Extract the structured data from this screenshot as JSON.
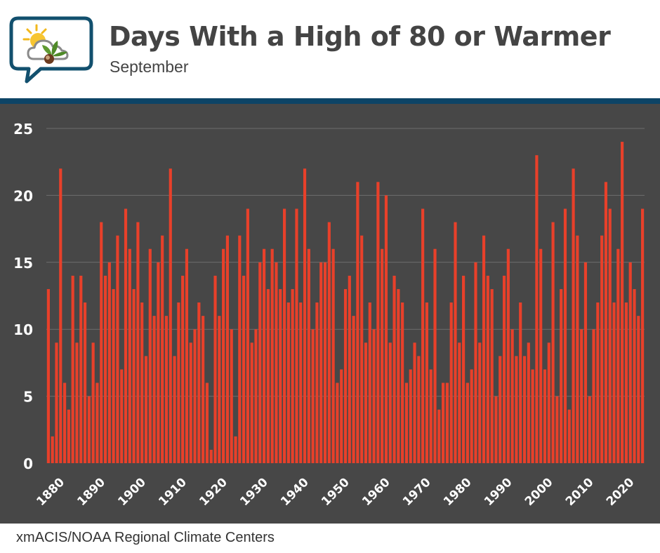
{
  "header": {
    "title": "Days With a High of 80 or Warmer",
    "subtitle": "September"
  },
  "footer": {
    "source": "xmACIS/NOAA Regional Climate Centers"
  },
  "colors": {
    "bar": "#e8402a",
    "panel": "#474747",
    "grid": "#6e6e6e",
    "accent_stripe": "#0d4466",
    "text": "#444444"
  },
  "chart_data": {
    "type": "bar",
    "title": "Days With a High of 80 or Warmer",
    "subtitle": "September",
    "xlabel": "",
    "ylabel": "",
    "x_start": 1878,
    "ylim": [
      0,
      25
    ],
    "yticks": [
      0,
      5,
      10,
      15,
      20,
      25
    ],
    "xtick_labels": [
      "1880",
      "1890",
      "1900",
      "1910",
      "1920",
      "1930",
      "1940",
      "1950",
      "1960",
      "1970",
      "1980",
      "1990",
      "2000",
      "2010",
      "2020"
    ],
    "grid": true,
    "x": [
      1878,
      1879,
      1880,
      1881,
      1882,
      1883,
      1884,
      1885,
      1886,
      1887,
      1888,
      1889,
      1890,
      1891,
      1892,
      1893,
      1894,
      1895,
      1896,
      1897,
      1898,
      1899,
      1900,
      1901,
      1902,
      1903,
      1904,
      1905,
      1906,
      1907,
      1908,
      1909,
      1910,
      1911,
      1912,
      1913,
      1914,
      1915,
      1916,
      1917,
      1918,
      1919,
      1920,
      1921,
      1922,
      1923,
      1924,
      1925,
      1926,
      1927,
      1928,
      1929,
      1930,
      1931,
      1932,
      1933,
      1934,
      1935,
      1936,
      1937,
      1938,
      1939,
      1940,
      1941,
      1942,
      1943,
      1944,
      1945,
      1946,
      1947,
      1948,
      1949,
      1950,
      1951,
      1952,
      1953,
      1954,
      1955,
      1956,
      1957,
      1958,
      1959,
      1960,
      1961,
      1962,
      1963,
      1964,
      1965,
      1966,
      1967,
      1968,
      1969,
      1970,
      1971,
      1972,
      1973,
      1974,
      1975,
      1976,
      1977,
      1978,
      1979,
      1980,
      1981,
      1982,
      1983,
      1984,
      1985,
      1986,
      1987,
      1988,
      1989,
      1990,
      1991,
      1992,
      1993,
      1994,
      1995,
      1996,
      1997,
      1998,
      1999,
      2000,
      2001,
      2002,
      2003,
      2004,
      2005,
      2006,
      2007,
      2008,
      2009,
      2010,
      2011,
      2012,
      2013,
      2014,
      2015,
      2016,
      2017,
      2018,
      2019,
      2020,
      2021,
      2022,
      2023,
      2024
    ],
    "values": [
      13,
      2,
      9,
      22,
      6,
      4,
      14,
      9,
      14,
      12,
      5,
      9,
      6,
      18,
      14,
      15,
      13,
      17,
      7,
      19,
      16,
      13,
      18,
      12,
      8,
      16,
      11,
      15,
      17,
      11,
      22,
      8,
      12,
      14,
      16,
      9,
      10,
      12,
      11,
      6,
      1,
      14,
      11,
      16,
      17,
      10,
      2,
      17,
      14,
      19,
      9,
      10,
      15,
      16,
      13,
      16,
      15,
      13,
      19,
      12,
      13,
      19,
      12,
      22,
      16,
      10,
      12,
      15,
      15,
      18,
      16,
      6,
      7,
      13,
      14,
      11,
      21,
      17,
      9,
      12,
      10,
      21,
      16,
      20,
      9,
      14,
      13,
      12,
      6,
      7,
      9,
      8,
      19,
      12,
      7,
      16,
      4,
      6,
      6,
      12,
      18,
      9,
      14,
      6,
      7,
      15,
      9,
      17,
      14,
      13,
      5,
      8,
      14,
      16,
      10,
      8,
      12,
      8,
      9,
      7,
      23,
      16,
      7,
      9,
      18,
      5,
      13,
      19,
      4,
      22,
      17,
      10,
      15,
      5,
      10,
      12,
      17,
      21,
      19,
      12,
      16,
      24,
      12,
      15,
      13,
      11,
      19
    ]
  }
}
